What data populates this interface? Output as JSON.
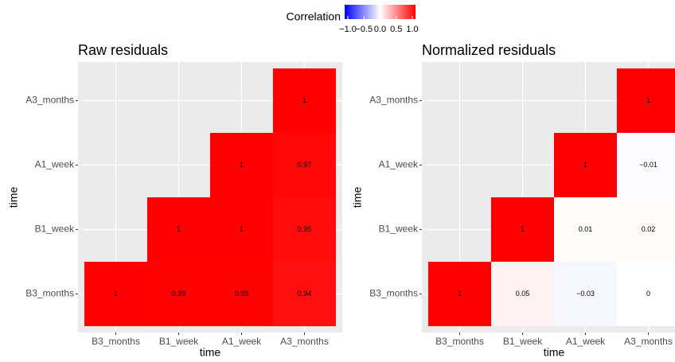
{
  "legend": {
    "title": "Correlation",
    "limits": [
      -1,
      1
    ],
    "colors": [
      "#0000ff",
      "#ffffff",
      "#ff0000"
    ],
    "ticks": [
      {
        "value": -1,
        "label": "−1.0"
      },
      {
        "value": -0.5,
        "label": "−0.5"
      },
      {
        "value": 0,
        "label": "0.0"
      },
      0.5,
      {
        "value": 1,
        "label": "1.0"
      }
    ]
  },
  "chart_data": [
    {
      "type": "heatmap",
      "title": "Raw residuals",
      "x_label": "time",
      "y_label": "time",
      "x_categories": [
        "B3_months",
        "B1_week",
        "A1_week",
        "A3_months"
      ],
      "y_categories": [
        "B3_months",
        "B1_week",
        "A1_week",
        "A3_months"
      ],
      "values": [
        [
          1,
          0.99,
          0.99,
          0.94
        ],
        [
          null,
          1,
          1,
          0.95
        ],
        [
          null,
          null,
          1,
          0.97
        ],
        [
          null,
          null,
          null,
          1
        ]
      ]
    },
    {
      "type": "heatmap",
      "title": "Normalized residuals",
      "x_label": "time",
      "y_label": "time",
      "x_categories": [
        "B3_months",
        "B1_week",
        "A1_week",
        "A3_months"
      ],
      "y_categories": [
        "B3_months",
        "B1_week",
        "A1_week",
        "A3_months"
      ],
      "values": [
        [
          1,
          0.05,
          -0.03,
          0
        ],
        [
          null,
          1,
          0.01,
          0.02
        ],
        [
          null,
          null,
          1,
          -0.01
        ],
        [
          null,
          null,
          null,
          1
        ]
      ],
      "value_labels": [
        [
          "1",
          "0.05",
          "−0.03",
          "0"
        ],
        [
          null,
          "1",
          "0.01",
          "0.02"
        ],
        [
          null,
          null,
          "1",
          "−0.01"
        ],
        [
          null,
          null,
          null,
          "1"
        ]
      ]
    }
  ]
}
